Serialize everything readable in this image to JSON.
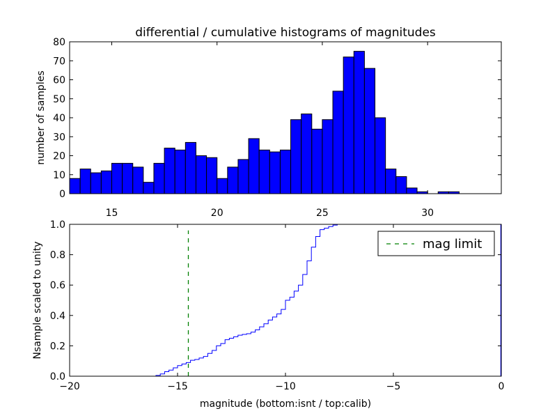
{
  "chart_data": [
    {
      "type": "bar",
      "title": "differential / cumulative histograms of magnitudes",
      "xlabel": "",
      "ylabel": "number of samples",
      "xlim": [
        13.0,
        33.5
      ],
      "ylim": [
        0,
        80
      ],
      "bar_color": "#0000ff",
      "bin_start": 13.0,
      "bin_width": 0.5,
      "values": [
        8,
        13,
        11,
        12,
        16,
        16,
        14,
        6,
        16,
        24,
        23,
        27,
        20,
        19,
        8,
        14,
        18,
        29,
        23,
        22,
        23,
        39,
        42,
        34,
        39,
        54,
        72,
        75,
        66,
        40,
        13,
        9,
        3,
        1,
        0,
        1,
        1,
        0,
        0,
        0,
        0
      ],
      "x_ticks": [
        15,
        20,
        25,
        30
      ],
      "x_tick_labels": [
        "15",
        "20",
        "25",
        "30"
      ],
      "y_ticks": [
        0,
        10,
        20,
        30,
        40,
        50,
        60,
        70,
        80
      ],
      "y_tick_labels": [
        "0",
        "10",
        "20",
        "30",
        "40",
        "50",
        "60",
        "70",
        "80"
      ]
    },
    {
      "type": "line",
      "title": "",
      "xlabel": "magnitude (bottom:isnt / top:calib)",
      "ylabel": "Nsample scaled to unity",
      "xlim": [
        -20,
        0
      ],
      "ylim": [
        0,
        1.0
      ],
      "line_color": "#0000ff",
      "step_start": -16.2,
      "step_width": 0.2,
      "step_values": [
        0.0,
        0.005,
        0.015,
        0.03,
        0.04,
        0.055,
        0.07,
        0.08,
        0.09,
        0.105,
        0.11,
        0.12,
        0.13,
        0.15,
        0.17,
        0.2,
        0.215,
        0.24,
        0.25,
        0.26,
        0.27,
        0.275,
        0.28,
        0.29,
        0.305,
        0.325,
        0.345,
        0.37,
        0.39,
        0.41,
        0.44,
        0.5,
        0.52,
        0.56,
        0.6,
        0.67,
        0.76,
        0.85,
        0.92,
        0.965,
        0.975,
        0.985,
        0.995,
        1.0
      ],
      "mag_limit": {
        "x": -14.5,
        "ymax": 0.96,
        "color": "#008000",
        "legend_label": "mag limit"
      },
      "x_ticks": [
        -20,
        -15,
        -10,
        -5,
        0
      ],
      "x_tick_labels": [
        "−20",
        "−15",
        "−10",
        "−5",
        "0"
      ],
      "y_ticks": [
        0.0,
        0.2,
        0.4,
        0.6,
        0.8,
        1.0
      ],
      "y_tick_labels": [
        "0.0",
        "0.2",
        "0.4",
        "0.6",
        "0.8",
        "1.0"
      ],
      "legend_position": "top-right"
    }
  ]
}
